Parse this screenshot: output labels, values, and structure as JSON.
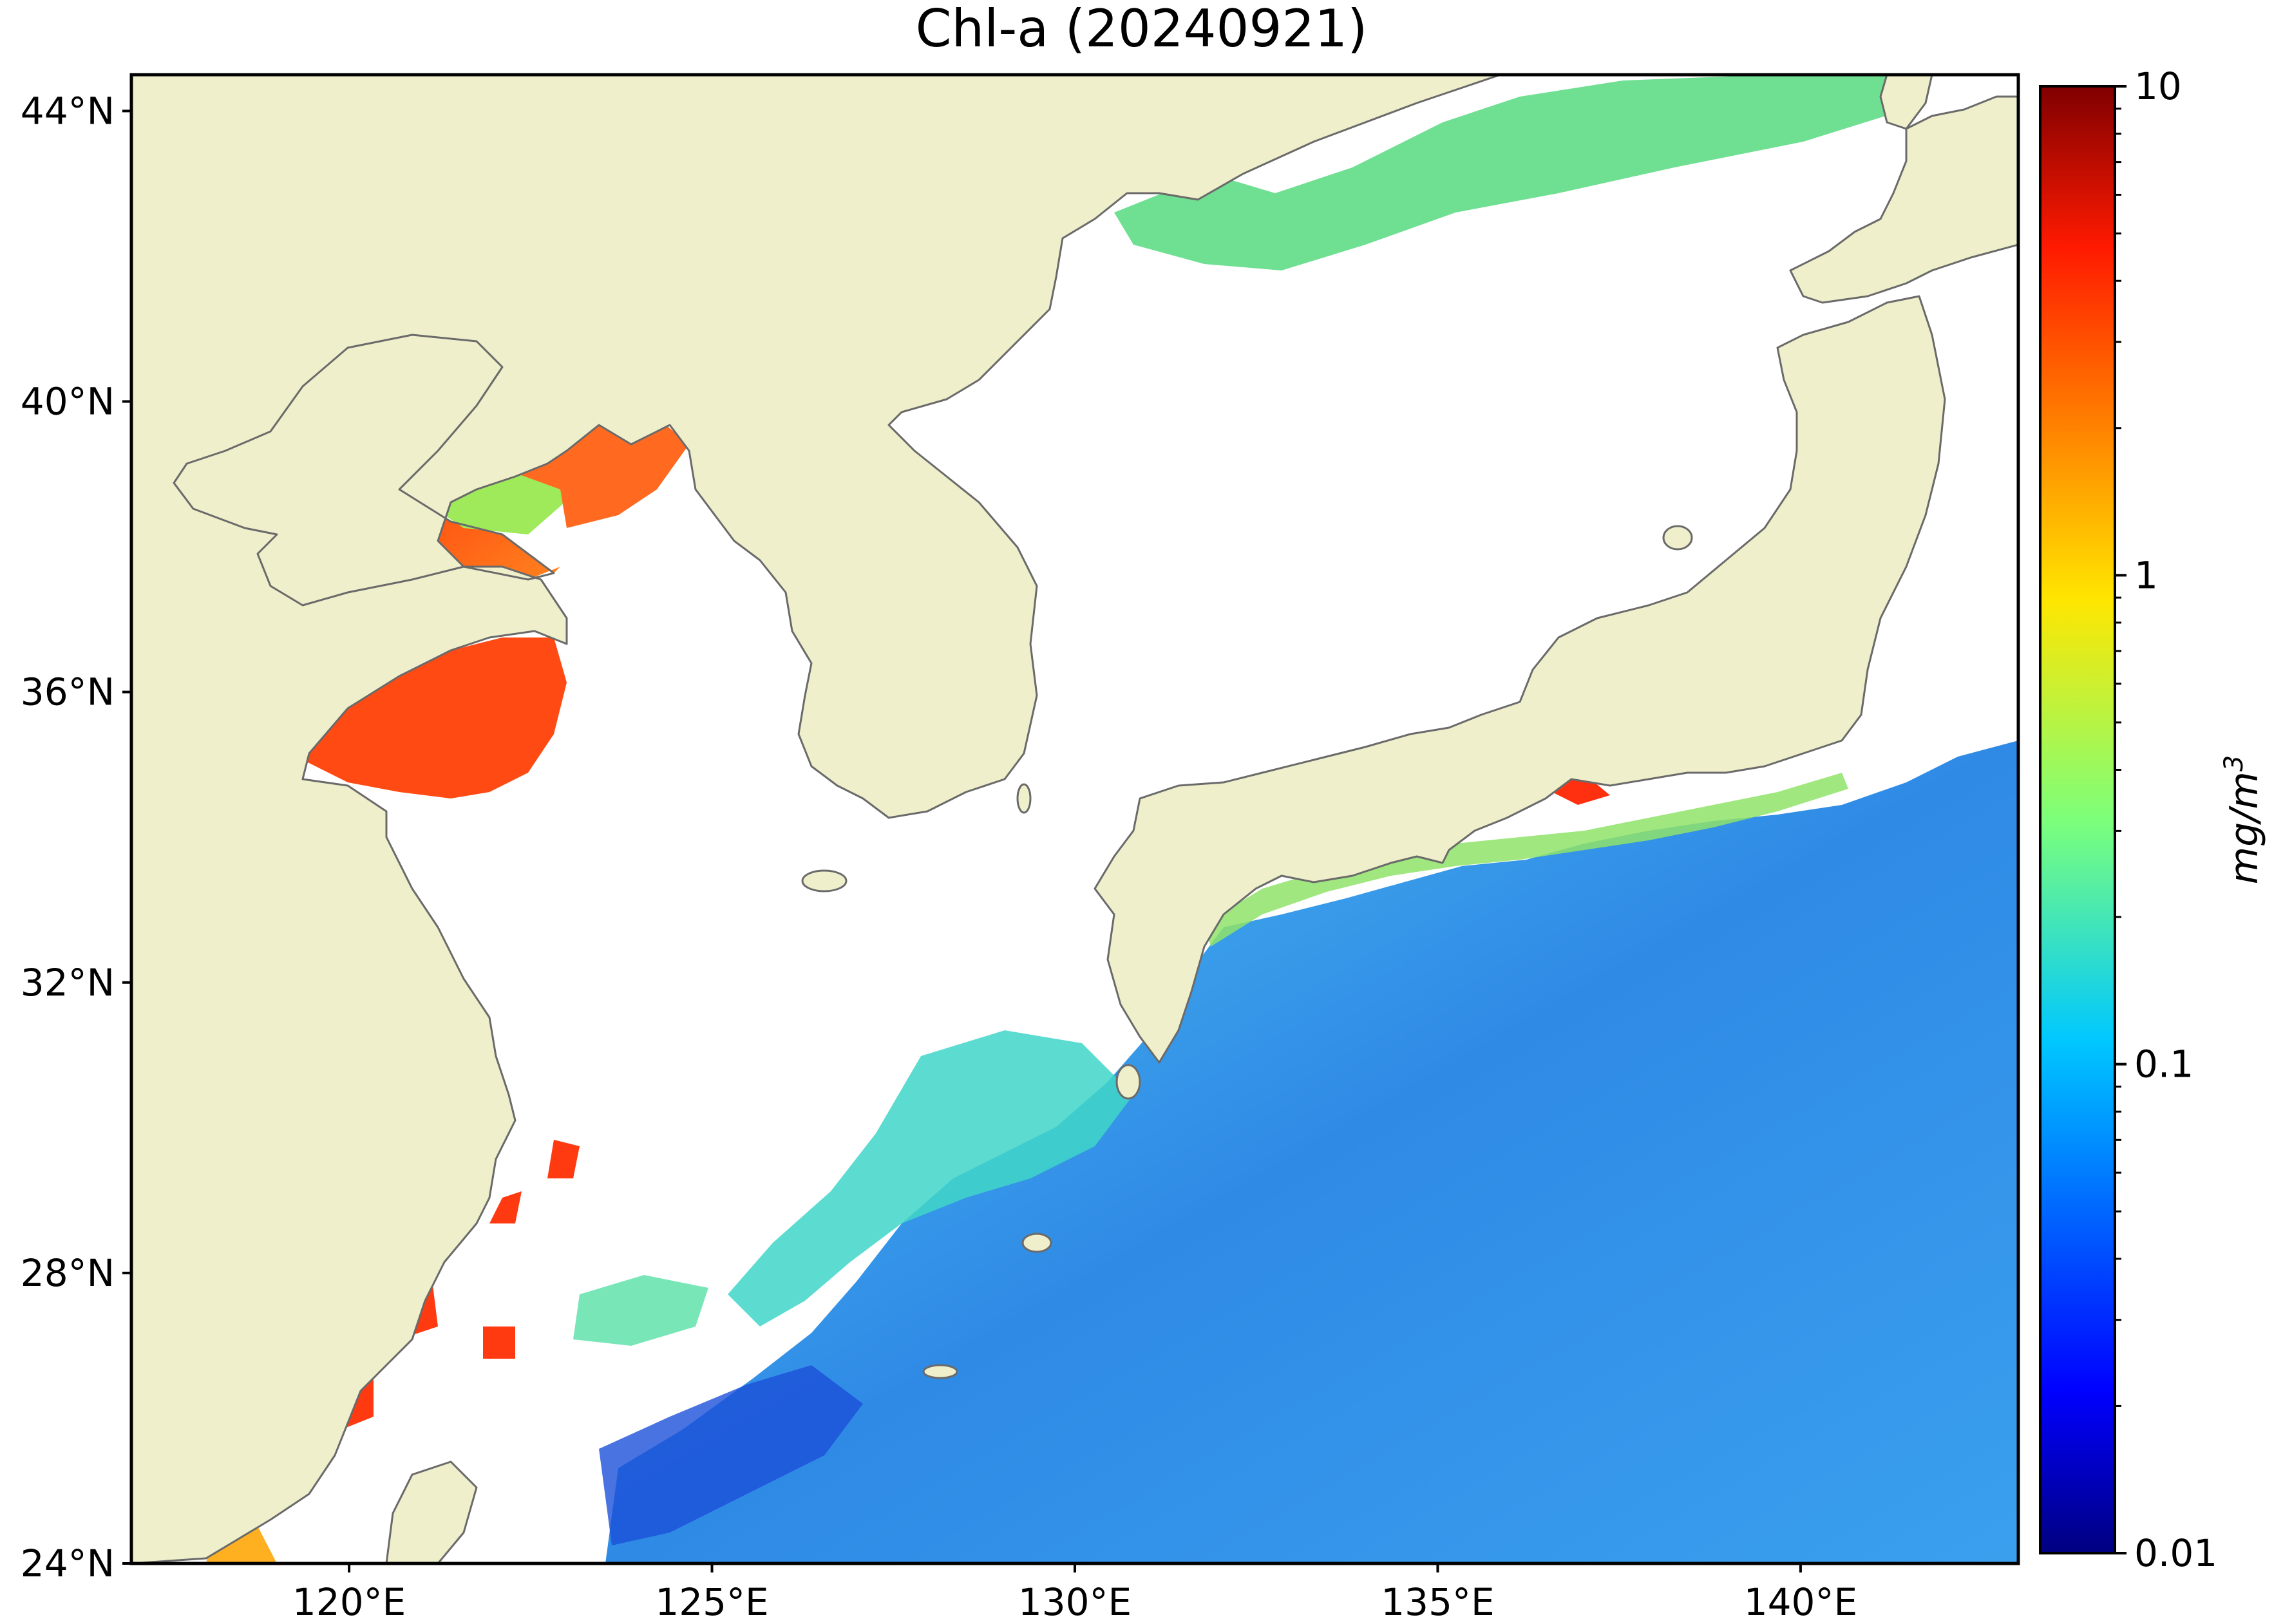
{
  "title": "Chl-a (20240921)",
  "map": {
    "extent": {
      "lon_min": 117,
      "lon_max": 143,
      "lat_min": 24,
      "lat_max": 44.5
    },
    "colors": {
      "land": "#efefcb",
      "coast": "#6a6a6a",
      "nodata": "#ffffff",
      "frame": "#000000"
    },
    "lat_ticks": [
      {
        "value": 24,
        "label": "24°N"
      },
      {
        "value": 28,
        "label": "28°N"
      },
      {
        "value": 32,
        "label": "32°N"
      },
      {
        "value": 36,
        "label": "36°N"
      },
      {
        "value": 40,
        "label": "40°N"
      },
      {
        "value": 44,
        "label": "44°N"
      }
    ],
    "lon_ticks": [
      {
        "value": 120,
        "label": "120°E"
      },
      {
        "value": 125,
        "label": "125°E"
      },
      {
        "value": 130,
        "label": "130°E"
      },
      {
        "value": 135,
        "label": "135°E"
      },
      {
        "value": 140,
        "label": "140°E"
      }
    ]
  },
  "colorbar": {
    "label": "mg/m3",
    "scale": "log",
    "colormap": "jet",
    "range": [
      0.01,
      10
    ],
    "ticks": [
      {
        "value": 10,
        "label": "10"
      },
      {
        "value": 1,
        "label": "1"
      },
      {
        "value": 0.1,
        "label": "0.1"
      },
      {
        "value": 0.01,
        "label": "0.01"
      }
    ]
  },
  "patches": [
    {
      "region": "Bohai Sea",
      "level": "high (~3-8 mg/m3)"
    },
    {
      "region": "Yellow Sea north",
      "level": "high (~2-5 mg/m3)"
    },
    {
      "region": "Sea of Japan coast (Primorye)",
      "level": "low-moderate (~0.15-0.4 mg/m3)"
    },
    {
      "region": "Pacific south of Japan",
      "level": "low (~0.05-0.15 mg/m3)"
    },
    {
      "region": "East China Sea coast",
      "level": "high (~3-8 mg/m3)"
    }
  ]
}
